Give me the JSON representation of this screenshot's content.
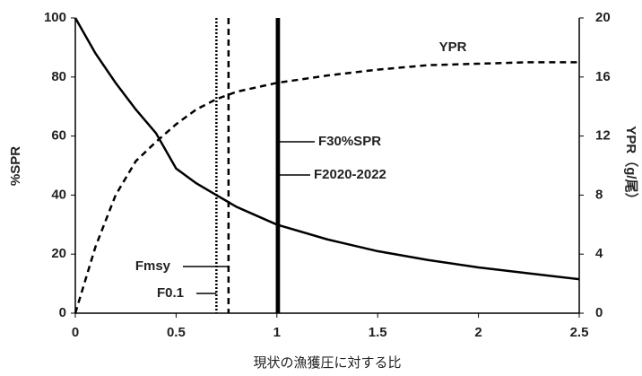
{
  "chart_data": {
    "type": "line",
    "x_label": "現状の漁獲圧に対する比",
    "y_label": "%SPR",
    "y2_label": "YPR（g/尾）",
    "x": [
      0,
      0.1,
      0.2,
      0.3,
      0.4,
      0.5,
      0.6,
      0.7,
      0.8,
      0.9,
      1.0,
      1.25,
      1.5,
      1.75,
      2.0,
      2.25,
      2.5
    ],
    "series": [
      {
        "name": "%SPR",
        "color": "#000000",
        "dash": "solid",
        "values": [
          100,
          88,
          78,
          69,
          61,
          49,
          44,
          40,
          36,
          33,
          30,
          25,
          21,
          18,
          15.5,
          13.5,
          11.5
        ]
      },
      {
        "name": "YPR",
        "color": "#000000",
        "dash": "dashed",
        "axis": "y2",
        "values": [
          0,
          4.5,
          8,
          10.3,
          11.6,
          12.8,
          13.8,
          14.5,
          15,
          15.3,
          15.6,
          16.1,
          16.5,
          16.8,
          16.9,
          17,
          17
        ]
      }
    ],
    "vlines": [
      {
        "name": "F0.1",
        "x": 0.7,
        "style": "dotted"
      },
      {
        "name": "Fmsy",
        "x": 0.76,
        "style": "dashed"
      },
      {
        "name": "F30%SPR",
        "x": 1.0,
        "style": "solid"
      },
      {
        "name": "F2020-2022",
        "x": 1.01,
        "style": "solid"
      }
    ],
    "xlim": [
      0,
      2.5
    ],
    "xticks": [
      0,
      0.5,
      1,
      1.5,
      2,
      2.5
    ],
    "ylim": [
      0,
      100
    ],
    "yticks": [
      0,
      20,
      40,
      60,
      80,
      100
    ],
    "y2lim": [
      0,
      20
    ],
    "y2ticks": [
      0,
      4,
      8,
      12,
      16,
      20
    ]
  }
}
